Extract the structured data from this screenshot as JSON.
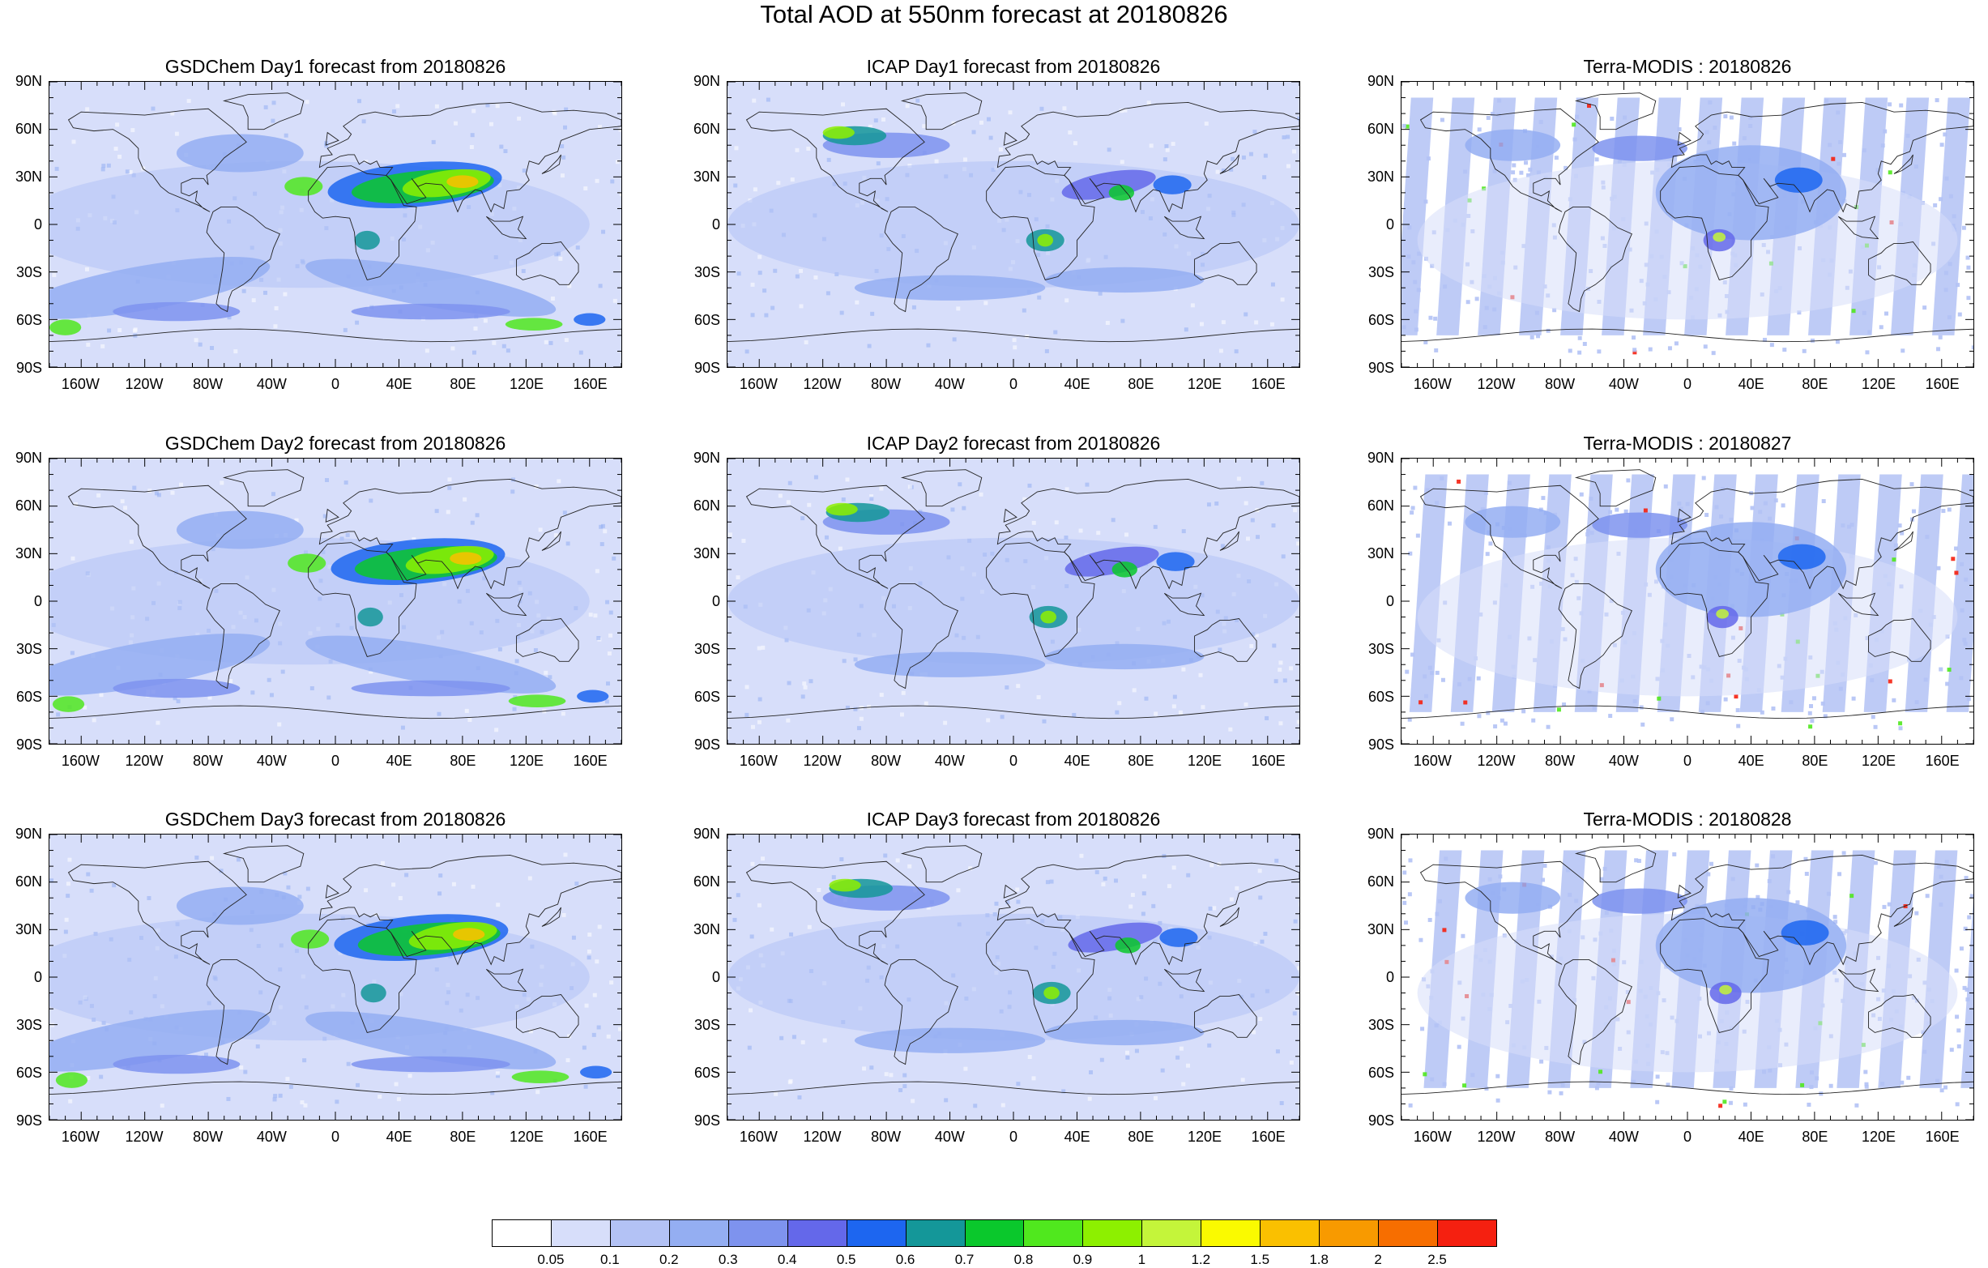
{
  "title": "Total AOD at 550nm forecast at 20180826",
  "panels": [
    {
      "title": "GSDChem Day1 forecast from 20180826",
      "kind": "model",
      "day": 1
    },
    {
      "title": "ICAP Day1 forecast from 20180826",
      "kind": "icap",
      "day": 1
    },
    {
      "title": "Terra-MODIS : 20180826",
      "kind": "modis",
      "day": 1
    },
    {
      "title": "GSDChem Day2 forecast from 20180826",
      "kind": "model",
      "day": 2
    },
    {
      "title": "ICAP Day2 forecast from 20180826",
      "kind": "icap",
      "day": 2
    },
    {
      "title": "Terra-MODIS : 20180827",
      "kind": "modis",
      "day": 2
    },
    {
      "title": "GSDChem Day3 forecast from 20180826",
      "kind": "model",
      "day": 3
    },
    {
      "title": "ICAP Day3 forecast from 20180826",
      "kind": "icap",
      "day": 3
    },
    {
      "title": "Terra-MODIS : 20180828",
      "kind": "modis",
      "day": 3
    }
  ],
  "lat_labels": [
    "90N",
    "60N",
    "30N",
    "0",
    "30S",
    "60S",
    "90S"
  ],
  "lat_values": [
    90,
    60,
    30,
    0,
    -30,
    -60,
    -90
  ],
  "lon_labels": [
    "160W",
    "120W",
    "80W",
    "40W",
    "0",
    "40E",
    "80E",
    "120E",
    "160E"
  ],
  "lon_values": [
    -160,
    -120,
    -80,
    -40,
    0,
    40,
    80,
    120,
    160
  ],
  "colorbar": {
    "colors": [
      "#ffffff",
      "#d7defa",
      "#b3c2f5",
      "#94aef2",
      "#7e93ee",
      "#6468ea",
      "#1d66f0",
      "#149799",
      "#0ac82c",
      "#50e81e",
      "#8df000",
      "#c4f53a",
      "#fafa00",
      "#fac000",
      "#f89a00",
      "#f76e00",
      "#f52010"
    ],
    "labels": [
      "0.05",
      "0.1",
      "0.2",
      "0.3",
      "0.4",
      "0.5",
      "0.6",
      "0.7",
      "0.8",
      "0.9",
      "1",
      "1.2",
      "1.5",
      "1.8",
      "2",
      "2.5"
    ]
  }
}
